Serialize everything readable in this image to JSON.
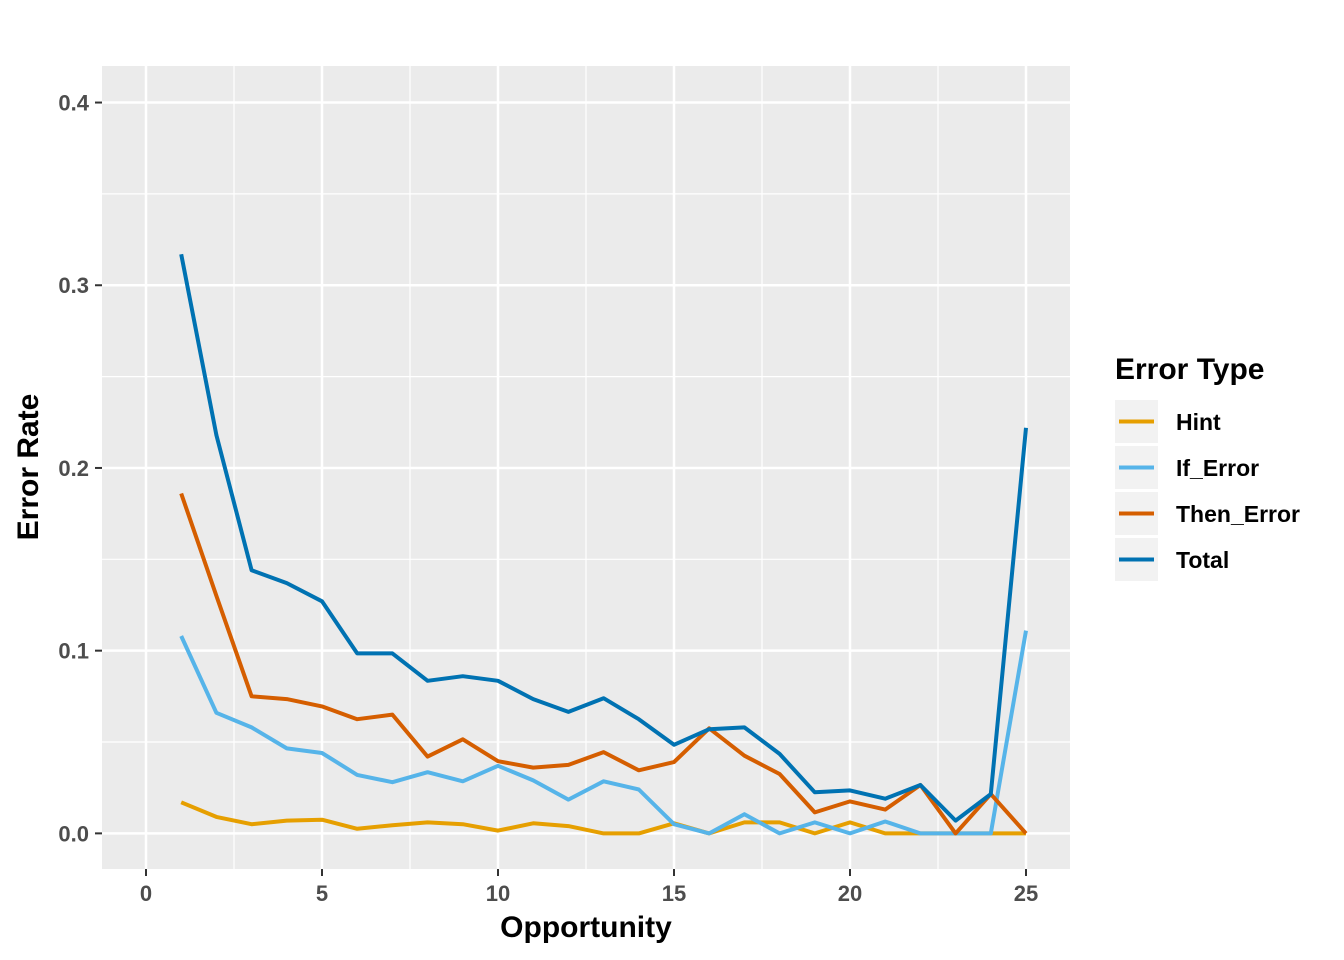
{
  "chart_data": {
    "type": "line",
    "title": "",
    "xlabel": "Opportunity",
    "ylabel": "Error Rate",
    "xlim": [
      -1.25,
      26.25
    ],
    "ylim": [
      -0.0195,
      0.42
    ],
    "x_ticks": [
      0,
      5,
      10,
      15,
      20,
      25
    ],
    "x_tick_labels": [
      "0",
      "5",
      "10",
      "15",
      "20",
      "25"
    ],
    "y_ticks": [
      0.0,
      0.1,
      0.2,
      0.3,
      0.4
    ],
    "y_tick_labels": [
      "0.0",
      "0.1",
      "0.2",
      "0.3",
      "0.4"
    ],
    "grid": true,
    "legend": {
      "title": "Error Type",
      "placement": "right"
    },
    "x": [
      1,
      2,
      3,
      4,
      5,
      6,
      7,
      8,
      9,
      10,
      11,
      12,
      13,
      14,
      15,
      16,
      17,
      18,
      19,
      20,
      21,
      22,
      23,
      24,
      25
    ],
    "series": [
      {
        "name": "Hint",
        "color": "#E69F00",
        "values": [
          0.017,
          0.009,
          0.005,
          0.007,
          0.0075,
          0.0025,
          0.0045,
          0.006,
          0.005,
          0.0015,
          0.0055,
          0.004,
          0.0,
          0.0,
          0.0055,
          0.0,
          0.006,
          0.006,
          0.0,
          0.006,
          0.0,
          0.0,
          0.0,
          0.0,
          0.0
        ]
      },
      {
        "name": "If_Error",
        "color": "#56B4E9",
        "values": [
          0.108,
          0.066,
          0.058,
          0.0465,
          0.044,
          0.032,
          0.028,
          0.0335,
          0.0285,
          0.037,
          0.029,
          0.0185,
          0.0285,
          0.024,
          0.005,
          0.0,
          0.0105,
          0.0,
          0.006,
          0.0,
          0.0065,
          0.0,
          0.0,
          0.0,
          0.111
        ]
      },
      {
        "name": "Then_Error",
        "color": "#D55E00",
        "values": [
          0.186,
          0.13,
          0.075,
          0.0735,
          0.0695,
          0.0625,
          0.065,
          0.042,
          0.0515,
          0.0395,
          0.036,
          0.0375,
          0.0445,
          0.0345,
          0.039,
          0.0575,
          0.0425,
          0.0325,
          0.0115,
          0.0175,
          0.013,
          0.0265,
          0.0,
          0.0215,
          0.0
        ]
      },
      {
        "name": "Total",
        "color": "#0072B2",
        "values": [
          0.317,
          0.218,
          0.144,
          0.137,
          0.127,
          0.0985,
          0.0985,
          0.0835,
          0.086,
          0.0835,
          0.0735,
          0.0665,
          0.074,
          0.0625,
          0.0485,
          0.057,
          0.058,
          0.0435,
          0.0225,
          0.0235,
          0.019,
          0.0265,
          0.007,
          0.0215,
          0.222
        ]
      }
    ]
  }
}
